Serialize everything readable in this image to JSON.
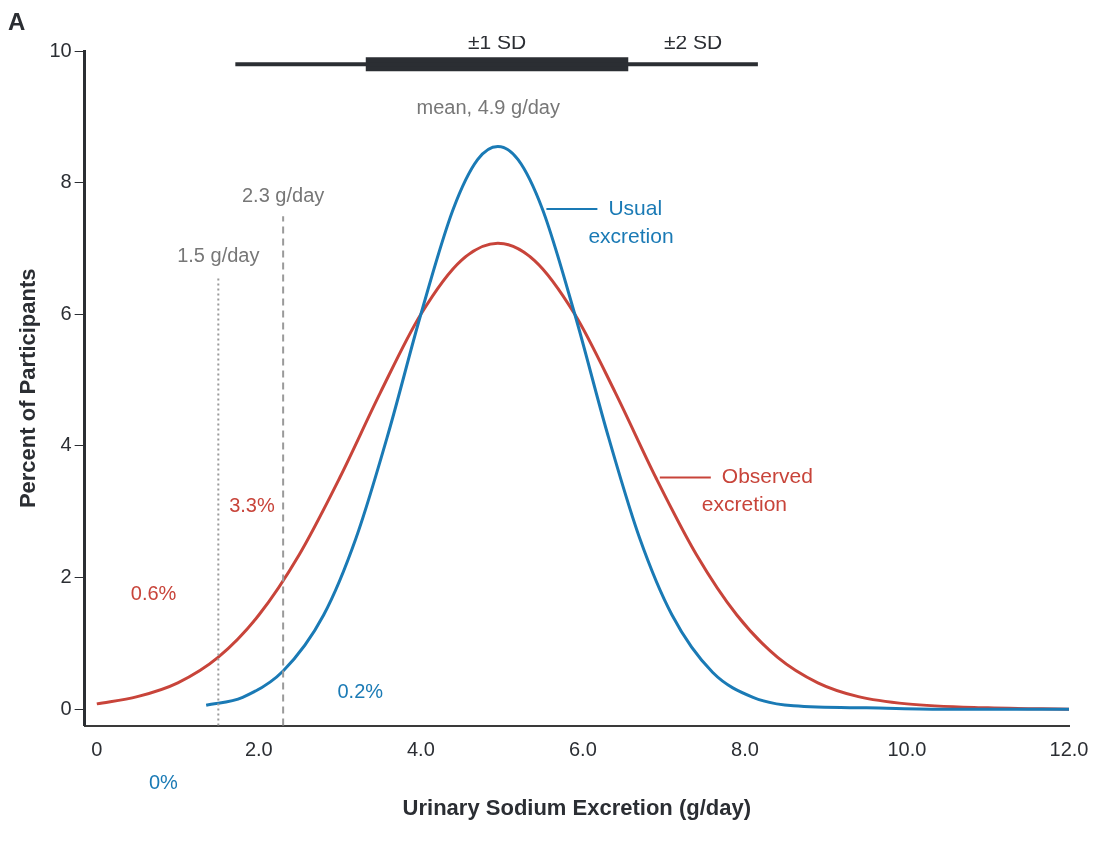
{
  "chart_data": {
    "type": "line",
    "xlabel": "Urinary Sodium Excretion (g/day)",
    "ylabel": "Percent of Participants",
    "xlim": [
      -0.15,
      12
    ],
    "ylim": [
      -0.25,
      10
    ],
    "xticks": [
      0,
      {
        "value": 2,
        "label": "2.0"
      },
      {
        "value": 4,
        "label": "4.0"
      },
      {
        "value": 6,
        "label": "6.0"
      },
      {
        "value": 8,
        "label": "8.0"
      },
      {
        "value": 10,
        "label": "10.0"
      },
      {
        "value": 12,
        "label": "12.0"
      }
    ],
    "yticks": [
      0,
      2,
      4,
      6,
      8,
      10
    ],
    "grid": false,
    "legend": "right",
    "marker": "none",
    "line_style": "solid",
    "series": [
      {
        "name": "Usual excretion",
        "color": "#1a7ab5",
        "x": [
          1.35,
          1.8,
          2.3,
          2.8,
          3.2,
          3.6,
          4.0,
          4.4,
          4.7,
          4.95,
          5.2,
          5.5,
          5.9,
          6.3,
          6.7,
          7.1,
          7.6,
          8.1,
          8.6,
          9.5,
          10.5,
          12
        ],
        "values": [
          0.06,
          0.18,
          0.58,
          1.43,
          2.6,
          4.2,
          6.0,
          7.6,
          8.35,
          8.55,
          8.35,
          7.6,
          6.0,
          4.2,
          2.6,
          1.43,
          0.56,
          0.18,
          0.05,
          0.02,
          0,
          0
        ]
      },
      {
        "name": "Observed excretion",
        "color": "#c8443a",
        "x": [
          0,
          0.5,
          1.0,
          1.5,
          2.0,
          2.5,
          3.0,
          3.5,
          4.0,
          4.5,
          4.95,
          5.4,
          5.9,
          6.4,
          6.9,
          7.4,
          7.9,
          8.4,
          8.9,
          9.4,
          10,
          11,
          12
        ],
        "values": [
          0.08,
          0.19,
          0.4,
          0.79,
          1.43,
          2.35,
          3.52,
          4.81,
          6.0,
          6.82,
          7.08,
          6.82,
          6.0,
          4.81,
          3.52,
          2.35,
          1.43,
          0.79,
          0.4,
          0.19,
          0.08,
          0.02,
          0
        ]
      },
      {
        "name": "±2 SD",
        "color": "#2b2e33",
        "x": [
          1.71,
          8.16
        ],
        "values": [
          9.8,
          9.8
        ]
      },
      {
        "name": "±1 SD",
        "color": "#2b2e33",
        "x": [
          3.32,
          6.56
        ],
        "values": [
          9.8,
          9.8
        ]
      }
    ],
    "ref_lines": [
      {
        "axis": "x",
        "value": 1.5,
        "label": "1.5 g/day",
        "color": "#9a9a9a",
        "line_style": "dotted"
      },
      {
        "axis": "x",
        "value": 2.3,
        "label": "2.3 g/day",
        "color": "#9a9a9a",
        "line_style": "dashed"
      }
    ],
    "annotations": [
      "A",
      "mean, 4.9 g/day",
      "3.3%",
      "0.6%",
      "0.2%",
      "0%"
    ]
  }
}
